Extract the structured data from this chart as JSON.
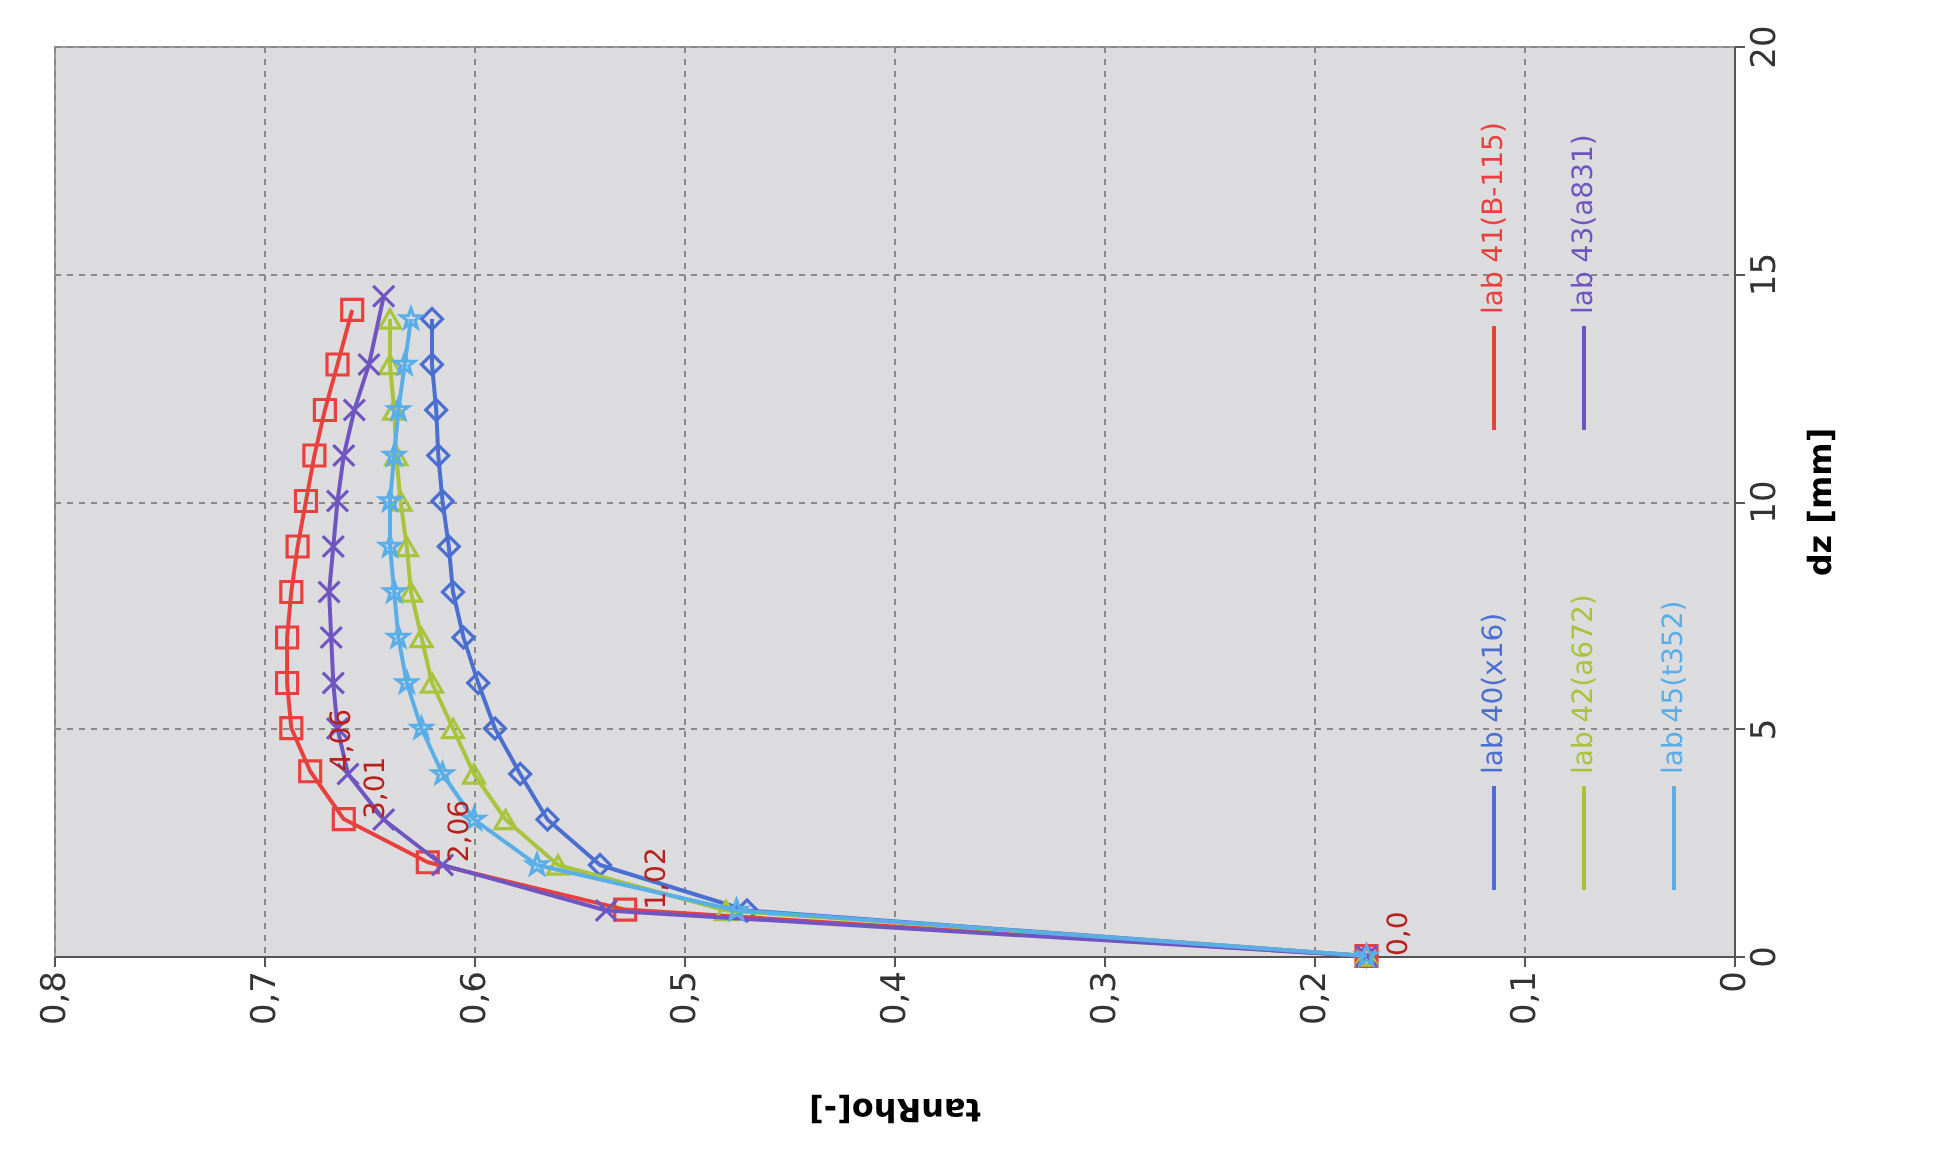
{
  "chart_data": {
    "type": "line",
    "xlabel": "tanRho[-]",
    "ylabel": "dz [mm]",
    "xlim": [
      0.8,
      0
    ],
    "xticks": [
      {
        "value": 0.8,
        "label": "0,8"
      },
      {
        "value": 0.7,
        "label": "0,7"
      },
      {
        "value": 0.6,
        "label": "0,6"
      },
      {
        "value": 0.5,
        "label": "0,5"
      },
      {
        "value": 0.4,
        "label": "0,4"
      },
      {
        "value": 0.3,
        "label": "0,3"
      },
      {
        "value": 0.2,
        "label": "0,2"
      },
      {
        "value": 0.1,
        "label": "0,1"
      },
      0
    ],
    "ylim": [
      0,
      20
    ],
    "yticks": [
      0,
      5,
      10,
      15,
      20
    ],
    "grid": true,
    "legend": "right",
    "series": [
      {
        "name": "lab 40(x16)",
        "color": "#4a6fd0",
        "marker": "diamond",
        "x": [
          0.175,
          0.47,
          0.54,
          0.565,
          0.578,
          0.59,
          0.598,
          0.605,
          0.61,
          0.612,
          0.615,
          0.617,
          0.618,
          0.62,
          0.62
        ],
        "values": [
          0,
          1,
          2,
          3,
          4,
          5,
          6,
          7,
          8,
          9,
          10,
          11,
          12,
          13,
          14
        ]
      },
      {
        "name": "lab 41(B-115)",
        "color": "#e8403c",
        "marker": "square",
        "x": [
          0.175,
          0.528,
          0.622,
          0.662,
          0.678,
          0.687,
          0.689,
          0.689,
          0.687,
          0.684,
          0.68,
          0.676,
          0.671,
          0.665,
          0.658
        ],
        "values": [
          0,
          1.02,
          2.06,
          3.01,
          4.06,
          5.01,
          6,
          7,
          8,
          9,
          10,
          11,
          12,
          13,
          14.2
        ]
      },
      {
        "name": "lab 42(a672)",
        "color": "#a8c43c",
        "marker": "triangle",
        "x": [
          0.175,
          0.48,
          0.56,
          0.585,
          0.6,
          0.61,
          0.62,
          0.625,
          0.63,
          0.632,
          0.635,
          0.637,
          0.638,
          0.64,
          0.64
        ],
        "values": [
          0,
          1,
          2,
          3,
          4,
          5,
          6,
          7,
          8,
          9,
          10,
          11,
          12,
          13,
          14
        ]
      },
      {
        "name": "lab 43(a831)",
        "color": "#7055c0",
        "marker": "cross",
        "x": [
          0.175,
          0.537,
          0.615,
          0.643,
          0.66,
          0.665,
          0.667,
          0.668,
          0.669,
          0.667,
          0.665,
          0.662,
          0.657,
          0.65,
          0.643
        ],
        "values": [
          0,
          1,
          2,
          3,
          4,
          5,
          6,
          7,
          8,
          9,
          10,
          11,
          12,
          13,
          14.5
        ]
      },
      {
        "name": "lab 45(t352)",
        "color": "#5aaee8",
        "marker": "star",
        "x": [
          0.175,
          0.475,
          0.57,
          0.6,
          0.615,
          0.625,
          0.632,
          0.636,
          0.638,
          0.64,
          0.64,
          0.638,
          0.636,
          0.633,
          0.63
        ],
        "values": [
          0,
          1,
          2,
          3,
          4,
          5,
          6,
          7,
          8,
          9,
          10,
          11,
          12,
          13,
          14
        ]
      }
    ],
    "annotations": [
      {
        "text": "0,0",
        "x": 0.175,
        "y": 0
      },
      {
        "text": "1,02",
        "x": 0.528,
        "y": 1.02
      },
      {
        "text": "2,06",
        "x": 0.622,
        "y": 2.06
      },
      {
        "text": "3,01",
        "x": 0.662,
        "y": 3.01
      },
      {
        "text": "4,06",
        "x": 0.678,
        "y": 4.06
      }
    ]
  }
}
